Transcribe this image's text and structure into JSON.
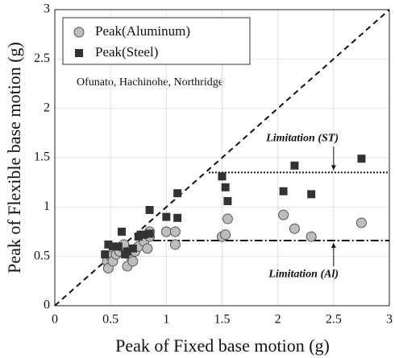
{
  "chart_data": {
    "type": "scatter",
    "xlabel": "Peak of Fixed base motion (g)",
    "ylabel": "Peak of Flexible base motion (g)",
    "xlim": [
      0,
      3
    ],
    "ylim": [
      0,
      3
    ],
    "xticks": [
      0,
      0.5,
      1,
      1.5,
      2,
      2.5,
      3
    ],
    "yticks": [
      0,
      0.5,
      1,
      1.5,
      2,
      2.5,
      3
    ],
    "grid": true,
    "annotation": "Ofunato, Hachinohe, Northridge",
    "series": [
      {
        "name": "Peak(Aluminum)",
        "color": "#bdbdbd",
        "marker": "circle",
        "x": [
          0.47,
          0.48,
          0.5,
          0.52,
          0.55,
          0.58,
          0.6,
          0.62,
          0.65,
          0.68,
          0.7,
          0.72,
          0.75,
          0.8,
          0.83,
          0.85,
          0.85,
          1.0,
          1.08,
          1.08,
          1.5,
          1.53,
          1.55,
          2.05,
          2.15,
          2.3,
          2.75
        ],
        "values": [
          0.45,
          0.38,
          0.5,
          0.45,
          0.52,
          0.55,
          0.6,
          0.62,
          0.4,
          0.5,
          0.45,
          0.55,
          0.6,
          0.65,
          0.58,
          0.75,
          0.7,
          0.75,
          0.62,
          0.75,
          0.7,
          0.72,
          0.88,
          0.92,
          0.78,
          0.7,
          0.84
        ]
      },
      {
        "name": "Peak(Steel)",
        "color": "#333333",
        "marker": "square",
        "x": [
          0.45,
          0.48,
          0.52,
          0.57,
          0.6,
          0.63,
          0.65,
          0.7,
          0.75,
          0.77,
          0.8,
          0.85,
          0.85,
          1.0,
          1.1,
          1.1,
          1.5,
          1.53,
          1.55,
          2.05,
          2.15,
          2.3,
          2.75
        ],
        "values": [
          0.52,
          0.62,
          0.6,
          0.6,
          0.75,
          0.52,
          0.55,
          0.58,
          0.7,
          0.72,
          0.72,
          0.97,
          0.73,
          0.9,
          1.14,
          0.89,
          1.31,
          1.2,
          1.06,
          1.16,
          1.42,
          1.13,
          1.49
        ]
      }
    ],
    "limits": [
      {
        "label": "Limitation (ST)",
        "y": 1.35,
        "x_start": 1.38,
        "style": "dotted"
      },
      {
        "label": "Limitation (Al)",
        "y": 0.66,
        "x_start": 0.75,
        "style": "dashdot"
      }
    ]
  }
}
